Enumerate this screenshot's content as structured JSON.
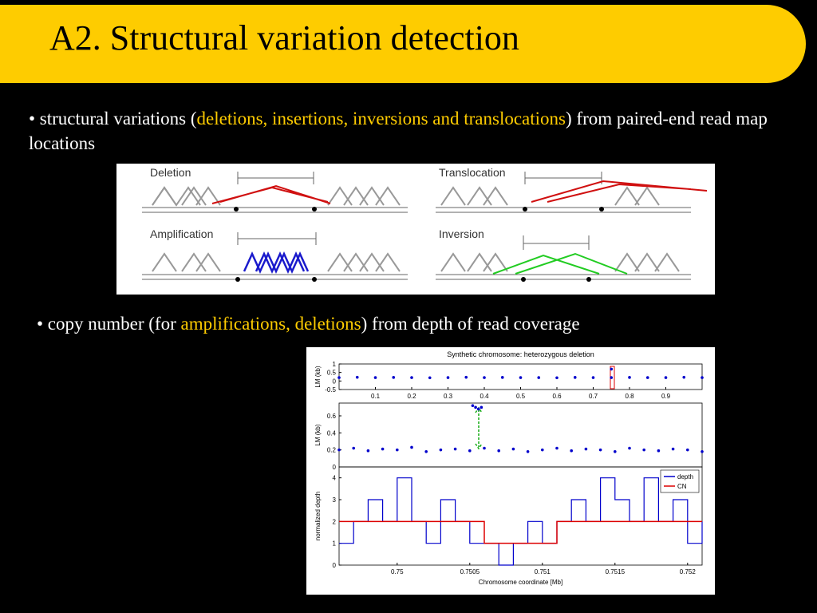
{
  "header": {
    "title": "A2. Structural variation detection"
  },
  "bullets": [
    {
      "parts": [
        "• structural variations (",
        "deletions, insertions, inversions and translocations",
        ") from paired-end read map locations"
      ]
    },
    {
      "parts": [
        "• copy number (for ",
        "amplifications, deletions",
        ") from depth of read coverage"
      ]
    }
  ],
  "diagram": {
    "labels": [
      "Deletion",
      "Translocation",
      "Amplification",
      "Inversion"
    ]
  },
  "chart_data": [
    {
      "type": "scatter",
      "title": "Synthetic chromosome:  heterozygous deletion",
      "ylabel": "LM (kb)",
      "color": "#0000cc",
      "xlim": [
        0,
        1
      ],
      "ylim": [
        -0.5,
        1
      ],
      "xticks": [
        0.1,
        0.2,
        0.3,
        0.4,
        0.5,
        0.6,
        0.7,
        0.8,
        0.9
      ],
      "yticks": [
        -0.5,
        0,
        0.5,
        1
      ],
      "x": [
        0,
        0.05,
        0.1,
        0.15,
        0.2,
        0.25,
        0.3,
        0.35,
        0.4,
        0.45,
        0.5,
        0.55,
        0.6,
        0.65,
        0.7,
        0.75,
        0.75,
        0.8,
        0.85,
        0.9,
        0.95,
        1
      ],
      "values": [
        0.2,
        0.22,
        0.2,
        0.21,
        0.2,
        0.19,
        0.2,
        0.22,
        0.2,
        0.21,
        0.2,
        0.2,
        0.19,
        0.21,
        0.2,
        0.2,
        0.7,
        0.21,
        0.2,
        0.2,
        0.22,
        0.2
      ]
    },
    {
      "type": "scatter",
      "ylabel": "LM (kb)",
      "color": "#0000cc",
      "xlim": [
        0.7496,
        0.7521
      ],
      "ylim": [
        0,
        0.75
      ],
      "yticks": [
        0,
        0.2,
        0.4,
        0.6
      ],
      "x": [
        0.7496,
        0.7497,
        0.7498,
        0.7499,
        0.75,
        0.7501,
        0.7502,
        0.7503,
        0.7504,
        0.7505,
        0.75052,
        0.75054,
        0.75056,
        0.75058,
        0.7506,
        0.7507,
        0.7508,
        0.7509,
        0.751,
        0.7511,
        0.7512,
        0.7513,
        0.7514,
        0.7515,
        0.7516,
        0.7517,
        0.7518,
        0.7519,
        0.752,
        0.7521
      ],
      "values": [
        0.2,
        0.22,
        0.19,
        0.21,
        0.2,
        0.23,
        0.18,
        0.2,
        0.21,
        0.19,
        0.72,
        0.7,
        0.68,
        0.7,
        0.22,
        0.19,
        0.21,
        0.18,
        0.2,
        0.22,
        0.19,
        0.21,
        0.2,
        0.18,
        0.22,
        0.2,
        0.19,
        0.21,
        0.2,
        0.18
      ]
    },
    {
      "type": "line",
      "ylabel": "normalized depth",
      "xlabel": "Chromosome coordinate [Mb]",
      "legend": "upper right",
      "xlim": [
        0.7496,
        0.7521
      ],
      "ylim": [
        0,
        4.5
      ],
      "xticks": [
        0.75,
        0.7505,
        0.751,
        0.7515,
        0.752
      ],
      "yticks": [
        0,
        1,
        2,
        3,
        4
      ],
      "x": [
        0.7496,
        0.7497,
        0.7498,
        0.7499,
        0.75,
        0.7501,
        0.7502,
        0.7503,
        0.7504,
        0.7505,
        0.7506,
        0.7507,
        0.7508,
        0.7509,
        0.751,
        0.7511,
        0.7512,
        0.7513,
        0.7514,
        0.7515,
        0.7516,
        0.7517,
        0.7518,
        0.7519,
        0.752,
        0.7521
      ],
      "series": [
        {
          "name": "depth",
          "color": "#0000cc",
          "values": [
            1,
            2,
            3,
            2,
            4,
            2,
            1,
            3,
            2,
            1,
            1,
            0,
            1,
            2,
            1,
            2,
            3,
            2,
            4,
            3,
            2,
            4,
            2,
            3,
            1,
            2
          ]
        },
        {
          "name": "CN",
          "color": "#dd0000",
          "values": [
            2,
            2,
            2,
            2,
            2,
            2,
            2,
            2,
            2,
            2,
            1,
            1,
            1,
            1,
            1,
            2,
            2,
            2,
            2,
            2,
            2,
            2,
            2,
            2,
            2,
            2
          ]
        }
      ]
    }
  ]
}
